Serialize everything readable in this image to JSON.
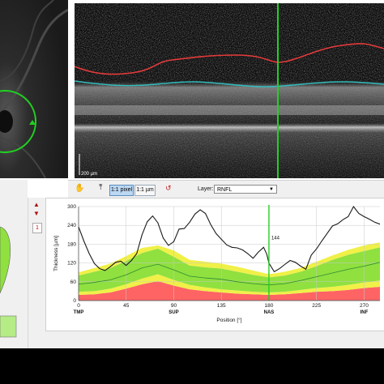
{
  "oct_scale_label": "200 µm",
  "toolbar": {
    "scale_pixel_label": "1:1 pixel",
    "scale_um_label": "1:1 µm",
    "layer_label": "Layer:",
    "layer_value": "RNFL"
  },
  "side_nav": {
    "page_label": "1"
  },
  "icons": [
    "hand-icon",
    "position-icon",
    "arrow-up-icon",
    "arrow-down-icon",
    "layer-edit-icon"
  ],
  "colors": {
    "within_normal": "#90e040",
    "borderline": "#f0f048",
    "outside_normal": "#ff6464",
    "cursor": "#22d022",
    "ilm_boundary": "#e63a3a",
    "rnfl_boundary": "#33bdbd"
  },
  "chart_data": {
    "type": "line",
    "xlabel": "Position [°]",
    "ylabel": "Thickness [µm]",
    "xlim": [
      0,
      285
    ],
    "ylim": [
      0,
      300
    ],
    "xticks": [
      0,
      45,
      90,
      135,
      180,
      225,
      270
    ],
    "yticks": [
      0,
      60,
      120,
      180,
      240,
      300
    ],
    "sector_labels": [
      {
        "x": 0,
        "label": "TMP"
      },
      {
        "x": 90,
        "label": "SUP"
      },
      {
        "x": 180,
        "label": "NAS"
      },
      {
        "x": 270,
        "label": "INF"
      }
    ],
    "cursor": {
      "x": 180,
      "label": "144"
    },
    "normative_bands": {
      "x": [
        0,
        15,
        30,
        45,
        60,
        75,
        90,
        105,
        120,
        135,
        150,
        165,
        180,
        195,
        210,
        225,
        240,
        255,
        270,
        285
      ],
      "p1": [
        18,
        20,
        26,
        38,
        52,
        62,
        48,
        36,
        30,
        26,
        22,
        20,
        18,
        20,
        24,
        28,
        30,
        34,
        40,
        44
      ],
      "p5": [
        28,
        30,
        38,
        52,
        70,
        84,
        66,
        50,
        42,
        36,
        32,
        28,
        26,
        28,
        34,
        40,
        44,
        50,
        58,
        64
      ],
      "p50": [
        52,
        58,
        66,
        82,
        104,
        116,
        98,
        78,
        72,
        68,
        60,
        54,
        50,
        54,
        64,
        76,
        88,
        100,
        110,
        122
      ],
      "p95": [
        80,
        92,
        104,
        126,
        152,
        166,
        140,
        112,
        106,
        102,
        92,
        82,
        74,
        80,
        92,
        110,
        130,
        146,
        158,
        170
      ],
      "p99": [
        90,
        104,
        118,
        142,
        168,
        176,
        160,
        130,
        124,
        118,
        108,
        96,
        84,
        92,
        104,
        124,
        144,
        162,
        176,
        186
      ]
    },
    "series": [
      {
        "x": [
          0,
          5,
          10,
          15,
          20,
          25,
          30,
          35,
          40,
          45,
          50,
          55,
          60,
          65,
          70,
          75,
          80,
          85,
          90,
          95,
          100,
          105,
          110,
          115,
          120,
          125,
          130,
          135,
          140,
          145,
          150,
          155,
          160,
          165,
          170,
          175,
          178,
          180,
          185,
          190,
          195,
          200,
          205,
          210,
          215,
          220,
          225,
          230,
          235,
          240,
          245,
          250,
          255,
          260,
          265,
          270,
          275,
          280,
          285
        ],
        "values": [
          235,
          190,
          150,
          118,
          102,
          96,
          108,
          122,
          126,
          112,
          128,
          150,
          210,
          252,
          270,
          248,
          200,
          176,
          188,
          228,
          230,
          250,
          276,
          290,
          278,
          242,
          214,
          196,
          178,
          170,
          168,
          162,
          150,
          135,
          155,
          170,
          148,
          120,
          92,
          102,
          115,
          128,
          122,
          110,
          100,
          145,
          165,
          190,
          214,
          238,
          245,
          258,
          268,
          300,
          278,
          268,
          260,
          250,
          244
        ]
      }
    ]
  }
}
